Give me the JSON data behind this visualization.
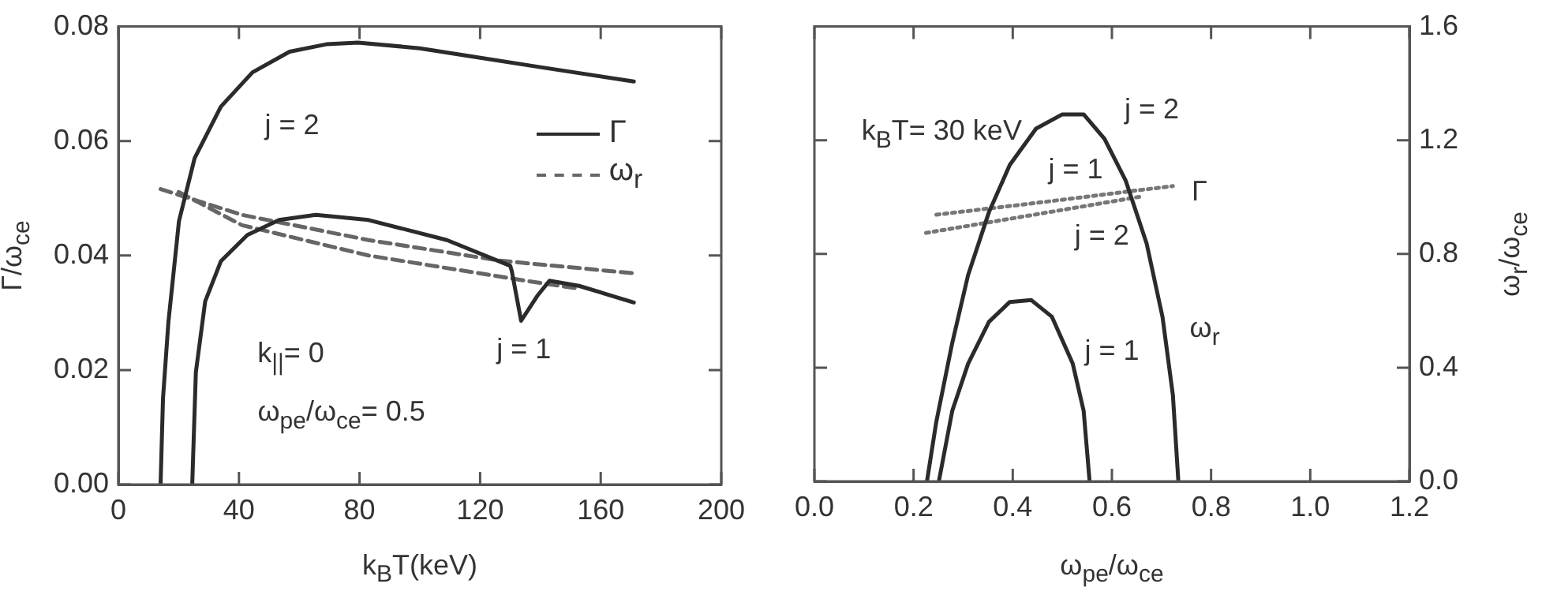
{
  "chart_data": [
    {
      "type": "line",
      "xlabel": "k$_{B}$T(keV)",
      "ylabel": "Γ/ω$_{ce}$",
      "xlim": [
        0,
        200
      ],
      "xticks": [
        0,
        40,
        80,
        120,
        160,
        200
      ],
      "ylim": [
        0,
        0.08
      ],
      "yticks": [
        {
          "value": 0,
          "label": "0.00"
        },
        0.02,
        0.04,
        0.06,
        0.08
      ],
      "legend": "top right",
      "marker": "none",
      "annotations": [
        "j = 2",
        "j = 1",
        "k$_{||}$= 0",
        "ω$_{pe}$/ω$_{ce}$= 0.5"
      ],
      "series": [
        {
          "name": "Γ",
          "color": "#2b2b2b",
          "line_style": "solid",
          "x": [
            14,
            14.8,
            16.6,
            20.1,
            25.3,
            34,
            44.5,
            56.8,
            69,
            79.5,
            100,
            118,
            140,
            171
          ],
          "values": [
            0,
            0.015,
            0.0284,
            0.046,
            0.057,
            0.066,
            0.072,
            0.0756,
            0.0769,
            0.0772,
            0.0762,
            0.0747,
            0.0729,
            0.0704
          ]
        },
        {
          "color": "#2b2b2b",
          "line_style": "solid",
          "x": [
            24.5,
            25.7,
            28.8,
            34,
            42.8,
            53.3,
            65.5,
            83,
            109,
            130,
            130.5,
            133.6,
            138.9,
            143,
            152.8,
            171
          ],
          "values": [
            0,
            0.0196,
            0.032,
            0.039,
            0.0436,
            0.0462,
            0.0471,
            0.0462,
            0.0427,
            0.0382,
            0.0373,
            0.0286,
            0.0329,
            0.0356,
            0.0347,
            0.0318
          ]
        },
        {
          "name": "ω$_{r}$",
          "color": "#666666",
          "line_style": "dashed",
          "x": [
            14,
            41,
            83,
            126.6,
            171
          ],
          "values": [
            0.0516,
            0.0471,
            0.0427,
            0.0391,
            0.0369
          ]
        },
        {
          "color": "#666666",
          "line_style": "dashed",
          "x": [
            20,
            41,
            83,
            135,
            153
          ],
          "values": [
            0.0511,
            0.0453,
            0.04,
            0.0356,
            0.0342
          ]
        }
      ]
    },
    {
      "type": "line",
      "xlabel": "ω$_{pe}$/ω$_{ce}$",
      "y2label": "ω$_{r}$/ω$_{ce}$",
      "xlim": [
        0,
        1.2
      ],
      "xticks": [
        {
          "value": 0,
          "label": "0.0"
        },
        0.2,
        0.4,
        0.6,
        0.8,
        {
          "value": 1,
          "label": "1.0"
        },
        1.2
      ],
      "y2lim": [
        0,
        1.6
      ],
      "y2ticks": [
        {
          "value": 0,
          "label": "0.0"
        },
        0.4,
        0.8,
        1.2,
        1.6
      ],
      "marker": "none",
      "annotations": [
        "k$_{B}$T= 30 keV",
        "j = 2",
        "j = 1",
        "Γ",
        "j = 2",
        "ω$_{r}$",
        "j = 1"
      ],
      "series": [
        {
          "color": "#2b2b2b",
          "line_style": "solid",
          "axis": "y2",
          "x": [
            0.227,
            0.246,
            0.278,
            0.31,
            0.352,
            0.394,
            0.447,
            0.5,
            0.543,
            0.585,
            0.628,
            0.67,
            0.702,
            0.723,
            0.734
          ],
          "values": [
            0,
            0.211,
            0.487,
            0.726,
            0.947,
            1.113,
            1.241,
            1.291,
            1.291,
            1.205,
            1.057,
            0.837,
            0.579,
            0.303,
            0
          ]
        },
        {
          "color": "#2b2b2b",
          "line_style": "solid",
          "axis": "y2",
          "x": [
            0.251,
            0.278,
            0.31,
            0.352,
            0.394,
            0.437,
            0.479,
            0.521,
            0.543,
            0.555
          ],
          "values": [
            0,
            0.248,
            0.414,
            0.561,
            0.631,
            0.638,
            0.579,
            0.414,
            0.248,
            0
          ]
        },
        {
          "color": "#777777",
          "line_style": "dotted",
          "axis": "y2",
          "x": [
            0.246,
            0.45,
            0.723
          ],
          "values": [
            0.938,
            0.98,
            1.039
          ]
        },
        {
          "color": "#777777",
          "line_style": "dotted",
          "axis": "y2",
          "x": [
            0.225,
            0.45,
            0.659
          ],
          "values": [
            0.874,
            0.94,
            1.002
          ]
        }
      ]
    }
  ]
}
